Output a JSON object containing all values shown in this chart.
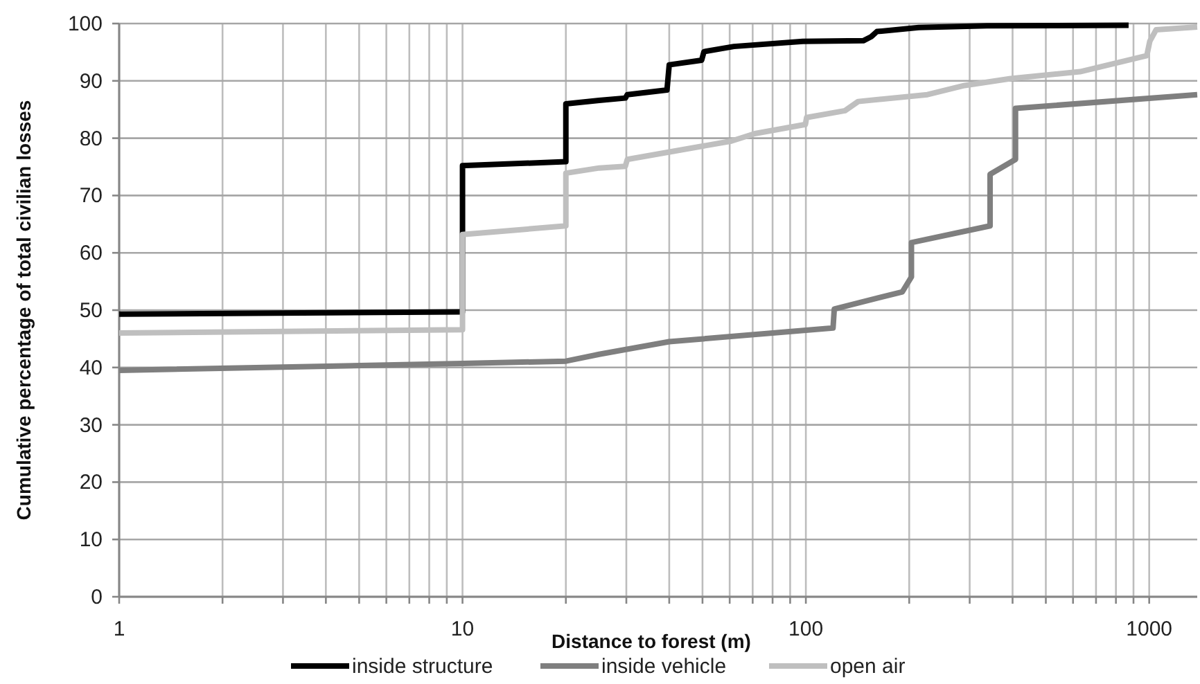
{
  "chart_data": {
    "type": "line",
    "xlabel": "Distance to forest (m)",
    "ylabel": "Cumulative percentage of total civilian losses",
    "log": "x",
    "grid": true,
    "legend": "bottom",
    "line_style": "solid",
    "marker": "none",
    "xlim": [
      1,
      1380
    ],
    "ylim": [
      0,
      100
    ],
    "xticks": [
      1,
      {
        "value": 2,
        "label": null
      },
      {
        "value": 3,
        "label": null
      },
      {
        "value": 4,
        "label": null
      },
      {
        "value": 5,
        "label": null
      },
      {
        "value": 6,
        "label": null
      },
      {
        "value": 7,
        "label": null
      },
      {
        "value": 8,
        "label": null
      },
      {
        "value": 9,
        "label": null
      },
      10,
      {
        "value": 20,
        "label": null
      },
      {
        "value": 30,
        "label": null
      },
      {
        "value": 40,
        "label": null
      },
      {
        "value": 50,
        "label": null
      },
      {
        "value": 60,
        "label": null
      },
      {
        "value": 70,
        "label": null
      },
      {
        "value": 80,
        "label": null
      },
      {
        "value": 90,
        "label": null
      },
      100,
      {
        "value": 200,
        "label": null
      },
      {
        "value": 300,
        "label": null
      },
      {
        "value": 400,
        "label": null
      },
      {
        "value": 500,
        "label": null
      },
      {
        "value": 600,
        "label": null
      },
      {
        "value": 700,
        "label": null
      },
      {
        "value": 800,
        "label": null
      },
      {
        "value": 900,
        "label": null
      },
      1000
    ],
    "yticks": [
      0,
      10,
      20,
      30,
      40,
      50,
      60,
      70,
      80,
      90,
      100
    ],
    "series": [
      {
        "name": "inside structure",
        "color": "#000000",
        "x": [
          1,
          9.8,
          10,
          10,
          20,
          20,
          25,
          29.8,
          30.2,
          39.4,
          40,
          49.7,
          50.5,
          61.7,
          98,
          147,
          155,
          161,
          213,
          337,
          871
        ],
        "values": [
          49.3,
          49.7,
          49.7,
          75.2,
          75.9,
          86.0,
          86.6,
          87.0,
          87.6,
          88.4,
          92.8,
          93.6,
          95.1,
          96.0,
          96.9,
          97.0,
          97.7,
          98.6,
          99.3,
          99.6,
          99.7
        ]
      },
      {
        "name": "inside vehicle",
        "color": "#7f7f7f",
        "x": [
          1,
          10,
          20,
          25,
          40,
          120,
          121,
          191,
          203,
          203,
          344,
          344,
          408,
          408,
          1380
        ],
        "values": [
          39.5,
          40.7,
          41.1,
          42.3,
          44.5,
          46.9,
          50.2,
          53.2,
          55.8,
          61.8,
          64.7,
          73.7,
          76.3,
          85.2,
          87.6
        ]
      },
      {
        "name": "open air",
        "color": "#bfbfbf",
        "x": [
          1,
          10,
          10,
          20,
          20,
          25,
          29.8,
          30.2,
          60.7,
          71,
          99.7,
          100.5,
          130,
          142,
          226,
          290,
          395,
          629,
          984,
          1004,
          1047,
          1380
        ],
        "values": [
          46.0,
          46.6,
          63.2,
          64.7,
          73.9,
          74.8,
          75.1,
          76.3,
          79.5,
          80.8,
          82.4,
          83.6,
          84.8,
          86.4,
          87.6,
          89.2,
          90.4,
          91.6,
          94.4,
          96.9,
          98.9,
          99.4
        ]
      }
    ]
  }
}
